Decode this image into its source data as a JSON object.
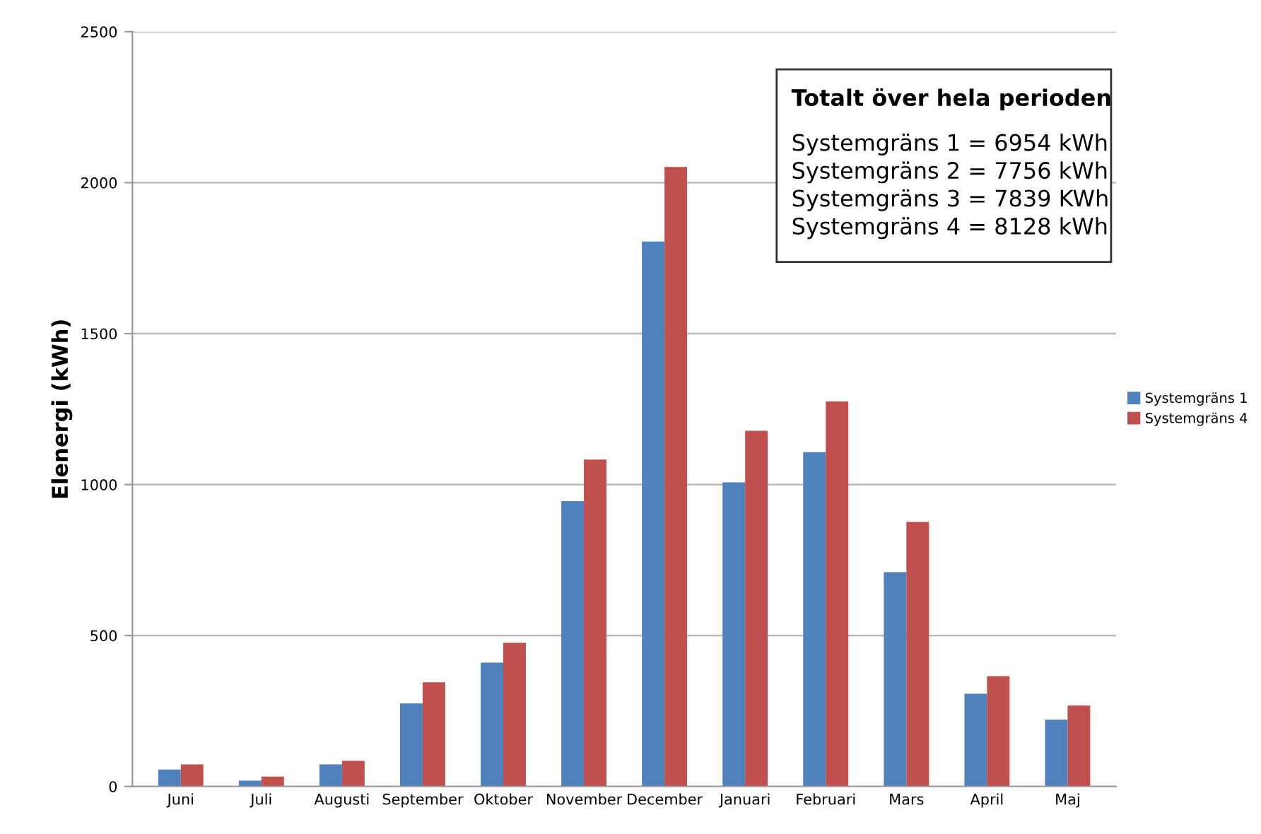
{
  "chart_data": {
    "type": "bar",
    "categories": [
      "Juni",
      "Juli",
      "Augusti",
      "September",
      "Oktober",
      "November",
      "December",
      "Januari",
      "Februari",
      "Mars",
      "April",
      "Maj"
    ],
    "series": [
      {
        "name": "Systemgräns 1",
        "color": "#4f81bd",
        "values": [
          56,
          19,
          73,
          275,
          410,
          945,
          1805,
          1007,
          1107,
          710,
          307,
          221
        ]
      },
      {
        "name": "Systemgräns 4",
        "color": "#c0504d",
        "values": [
          73,
          33,
          85,
          345,
          476,
          1083,
          2052,
          1178,
          1275,
          876,
          365,
          268
        ]
      }
    ],
    "ylabel": "Elenergi (kWh)",
    "ylim": [
      0,
      2500
    ],
    "yticks": [
      0,
      500,
      1000,
      1500,
      2000,
      2500
    ],
    "grid": "y",
    "legend": "right",
    "annotations": [
      "Totalt över hela perioden",
      "Systemgräns 1 = 6954 kWh",
      "Systemgräns 2 = 7756 kWh",
      "Systemgräns 3 = 7839 KWh",
      "Systemgräns 4 = 8128 kWh"
    ]
  }
}
